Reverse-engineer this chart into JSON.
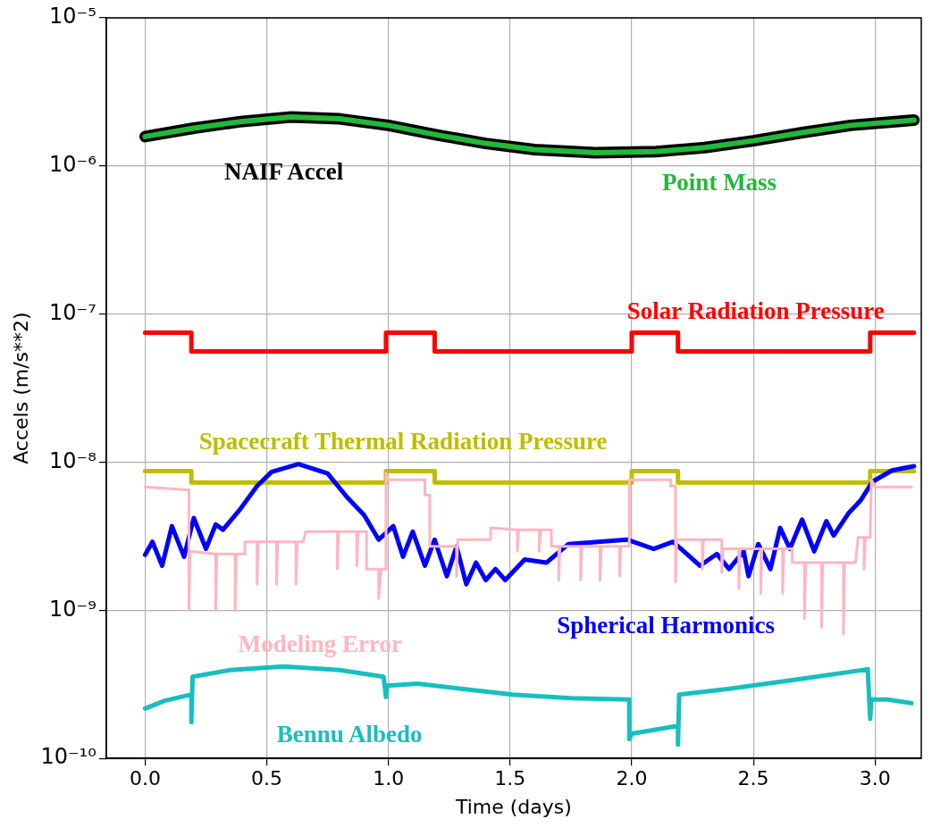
{
  "chart_data": {
    "type": "line",
    "xlabel": "Time (days)",
    "ylabel": "Accels (m/s**2)",
    "log": "y",
    "grid": true,
    "legend": false,
    "marker": "none",
    "line_style": "solid",
    "xlim": [
      -0.16,
      3.19
    ],
    "xticks": [
      {
        "value": 0,
        "label": "0.0"
      },
      {
        "value": 0.5,
        "label": "0.5"
      },
      {
        "value": 1,
        "label": "1.0"
      },
      {
        "value": 1.5,
        "label": "1.5"
      },
      {
        "value": 2,
        "label": "2.0"
      },
      {
        "value": 2.5,
        "label": "2.5"
      },
      {
        "value": 3,
        "label": "3.0"
      }
    ],
    "ylim": [
      1e-10,
      1e-05
    ],
    "yticks": [
      {
        "value": 1e-10,
        "label": "10⁻¹⁰"
      },
      {
        "value": 1e-09,
        "label": "10⁻⁹"
      },
      {
        "value": 1e-08,
        "label": "10⁻⁸"
      },
      {
        "value": 1e-07,
        "label": "10⁻⁷"
      },
      {
        "value": 1e-06,
        "label": "10⁻⁶"
      },
      {
        "value": 1e-05,
        "label": "10⁻⁵"
      }
    ],
    "series": [
      {
        "name": "NAIF Accel",
        "color": "#000000",
        "x": [
          0,
          0.2,
          0.4,
          0.6,
          0.8,
          1.0,
          1.2,
          1.4,
          1.6,
          1.85,
          2.1,
          2.3,
          2.5,
          2.7,
          2.9,
          3.16
        ],
        "values": [
          1.58e-06,
          1.8e-06,
          2e-06,
          2.14e-06,
          2.08e-06,
          1.88e-06,
          1.62e-06,
          1.42e-06,
          1.29e-06,
          1.23e-06,
          1.25e-06,
          1.33e-06,
          1.48e-06,
          1.68e-06,
          1.88e-06,
          2.04e-06
        ]
      },
      {
        "name": "Point Mass",
        "color": "#22b83a",
        "x": [
          0,
          0.2,
          0.4,
          0.6,
          0.8,
          1.0,
          1.2,
          1.4,
          1.6,
          1.85,
          2.1,
          2.3,
          2.5,
          2.7,
          2.9,
          3.16
        ],
        "values": [
          1.58e-06,
          1.8e-06,
          2e-06,
          2.14e-06,
          2.08e-06,
          1.88e-06,
          1.62e-06,
          1.42e-06,
          1.29e-06,
          1.23e-06,
          1.25e-06,
          1.33e-06,
          1.48e-06,
          1.68e-06,
          1.88e-06,
          2.04e-06
        ]
      },
      {
        "name": "Solar Radiation Pressure",
        "color": "#ff0000",
        "type": "step",
        "x": [
          0,
          0.19,
          0.99,
          1.19,
          2.0,
          2.19,
          2.98,
          3.16
        ],
        "values": [
          7.5e-08,
          5.6e-08,
          7.5e-08,
          5.6e-08,
          7.5e-08,
          5.6e-08,
          7.5e-08,
          7.5e-08
        ]
      },
      {
        "name": "Spacecraft Thermal Radiation Pressure",
        "color": "#bdbd00",
        "type": "step",
        "x": [
          0,
          0.19,
          0.99,
          1.19,
          2.0,
          2.19,
          2.98,
          3.16
        ],
        "values": [
          8.7e-09,
          7.3e-09,
          8.7e-09,
          7.3e-09,
          8.7e-09,
          7.3e-09,
          8.7e-09,
          8.7e-09
        ]
      },
      {
        "name": "Spherical Harmonics",
        "color": "#0000ff",
        "x": [
          0,
          0.03,
          0.07,
          0.11,
          0.16,
          0.2,
          0.25,
          0.29,
          0.32,
          0.39,
          0.46,
          0.52,
          0.63,
          0.75,
          0.83,
          0.9,
          0.96,
          1.02,
          1.06,
          1.1,
          1.15,
          1.19,
          1.24,
          1.28,
          1.32,
          1.36,
          1.4,
          1.44,
          1.48,
          1.56,
          1.65,
          1.74,
          1.86,
          1.98,
          2.09,
          2.17,
          2.28,
          2.35,
          2.4,
          2.46,
          2.48,
          2.52,
          2.57,
          2.61,
          2.65,
          2.7,
          2.75,
          2.8,
          2.83,
          2.89,
          2.94,
          2.99,
          3.07,
          3.16
        ],
        "values": [
          2.37e-09,
          2.9e-09,
          2e-09,
          3.7e-09,
          2.3e-09,
          4.2e-09,
          2.6e-09,
          3.8e-09,
          3.5e-09,
          4.8e-09,
          6.9e-09,
          8.6e-09,
          9.7e-09,
          8.4e-09,
          5.8e-09,
          4.4e-09,
          3e-09,
          3.7e-09,
          2.3e-09,
          3.4e-09,
          2e-09,
          3e-09,
          1.7e-09,
          2.7e-09,
          1.5e-09,
          2.1e-09,
          1.6e-09,
          1.9e-09,
          1.6e-09,
          2.2e-09,
          2.1e-09,
          2.8e-09,
          2.9e-09,
          3e-09,
          2.6e-09,
          2.9e-09,
          2e-09,
          2.4e-09,
          1.9e-09,
          2.5e-09,
          1.7e-09,
          2.8e-09,
          1.9e-09,
          3.6e-09,
          2.6e-09,
          4.1e-09,
          2.5e-09,
          4e-09,
          3.2e-09,
          4.5e-09,
          5.5e-09,
          7.4e-09,
          8.8e-09,
          9.4e-09
        ]
      },
      {
        "name": "Modeling Error",
        "color": "#ffb6c1",
        "x": [
          0,
          0.17,
          0.18,
          0.18,
          0.185,
          0.29,
          0.29,
          0.295,
          0.37,
          0.37,
          0.375,
          0.41,
          0.41,
          0.46,
          0.46,
          0.465,
          0.54,
          0.54,
          0.545,
          0.62,
          0.62,
          0.625,
          0.65,
          0.66,
          0.79,
          0.79,
          0.795,
          0.87,
          0.87,
          0.875,
          0.91,
          0.91,
          0.96,
          0.96,
          0.97,
          0.99,
          0.99,
          1.0,
          1.15,
          1.15,
          1.17,
          1.17,
          1.28,
          1.28,
          1.285,
          1.42,
          1.42,
          1.53,
          1.53,
          1.535,
          1.62,
          1.62,
          1.625,
          1.67,
          1.67,
          1.7,
          1.7,
          1.705,
          1.79,
          1.79,
          1.795,
          1.87,
          1.87,
          1.875,
          1.95,
          1.95,
          1.955,
          1.99,
          1.99,
          2.16,
          2.16,
          2.18,
          2.18,
          2.185,
          2.29,
          2.29,
          2.295,
          2.37,
          2.37,
          2.375,
          2.44,
          2.44,
          2.445,
          2.53,
          2.53,
          2.535,
          2.62,
          2.62,
          2.625,
          2.66,
          2.66,
          2.71,
          2.71,
          2.715,
          2.78,
          2.78,
          2.785,
          2.87,
          2.87,
          2.875,
          2.92,
          2.93,
          2.955,
          2.955,
          2.96,
          2.98,
          2.985,
          3.0,
          3.15
        ],
        "values": [
          6.8e-09,
          6.5e-09,
          6.5e-09,
          1e-09,
          2.5e-09,
          2.4e-09,
          1e-09,
          2.4e-09,
          2.4e-09,
          1e-09,
          2.4e-09,
          2.4e-09,
          2.9e-09,
          2.9e-09,
          1.5e-09,
          2.9e-09,
          2.9e-09,
          1.5e-09,
          2.9e-09,
          2.9e-09,
          1.5e-09,
          2.9e-09,
          2.9e-09,
          3.4e-09,
          3.4e-09,
          1.9e-09,
          3.4e-09,
          3.4e-09,
          2e-09,
          3.4e-09,
          3.4e-09,
          1.9e-09,
          1.9e-09,
          1.2e-09,
          1.9e-09,
          1.9e-09,
          8.4e-09,
          7.6e-09,
          7.6e-09,
          6e-09,
          6e-09,
          2.7e-09,
          2.7e-09,
          1.7e-09,
          3e-09,
          3e-09,
          3.6e-09,
          3.5e-09,
          2.5e-09,
          3.5e-09,
          3.5e-09,
          2.5e-09,
          3.5e-09,
          3.5e-09,
          2.7e-09,
          2.7e-09,
          1.6e-09,
          2.7e-09,
          2.7e-09,
          1.6e-09,
          2.7e-09,
          2.7e-09,
          1.6e-09,
          2.7e-09,
          2.7e-09,
          1.7e-09,
          2.7e-09,
          2.7e-09,
          7.6e-09,
          7.6e-09,
          6.9e-09,
          6.9e-09,
          1.55e-09,
          3e-09,
          3e-09,
          1.9e-09,
          3e-09,
          3e-09,
          1.8e-09,
          2.6e-09,
          2.6e-09,
          1.4e-09,
          2.6e-09,
          2.6e-09,
          1.3e-09,
          2.6e-09,
          2.6e-09,
          1.3e-09,
          2.6e-09,
          2.6e-09,
          2.1e-09,
          2.1e-09,
          8.8e-10,
          2.1e-09,
          2.1e-09,
          7.7e-10,
          2.1e-09,
          2.1e-09,
          6.9e-10,
          2.1e-09,
          2.1e-09,
          3.1e-09,
          3.1e-09,
          1.9e-09,
          3.1e-09,
          3.1e-09,
          7.6e-09,
          6.8e-09,
          6.8e-09
        ]
      },
      {
        "name": "Bennu Albedo",
        "color": "#17bfbf",
        "x": [
          0,
          0.08,
          0.19,
          0.19,
          0.195,
          0.35,
          0.57,
          0.8,
          0.98,
          0.99,
          0.995,
          1.12,
          1.3,
          1.51,
          1.75,
          1.99,
          1.99,
          2.0,
          2.19,
          2.19,
          2.195,
          2.4,
          2.7,
          2.97,
          2.98,
          2.985,
          3.05,
          3.15
        ],
        "values": [
          2.17e-10,
          2.45e-10,
          2.7e-10,
          1.76e-10,
          3.56e-10,
          3.95e-10,
          4.17e-10,
          3.95e-10,
          3.56e-10,
          2.6e-10,
          3.1e-10,
          3.2e-10,
          2.95e-10,
          2.7e-10,
          2.55e-10,
          2.5e-10,
          1.35e-10,
          1.47e-10,
          1.66e-10,
          1.24e-10,
          2.7e-10,
          2.95e-10,
          3.45e-10,
          4e-10,
          1.85e-10,
          2.5e-10,
          2.5e-10,
          2.36e-10
        ]
      }
    ]
  }
}
